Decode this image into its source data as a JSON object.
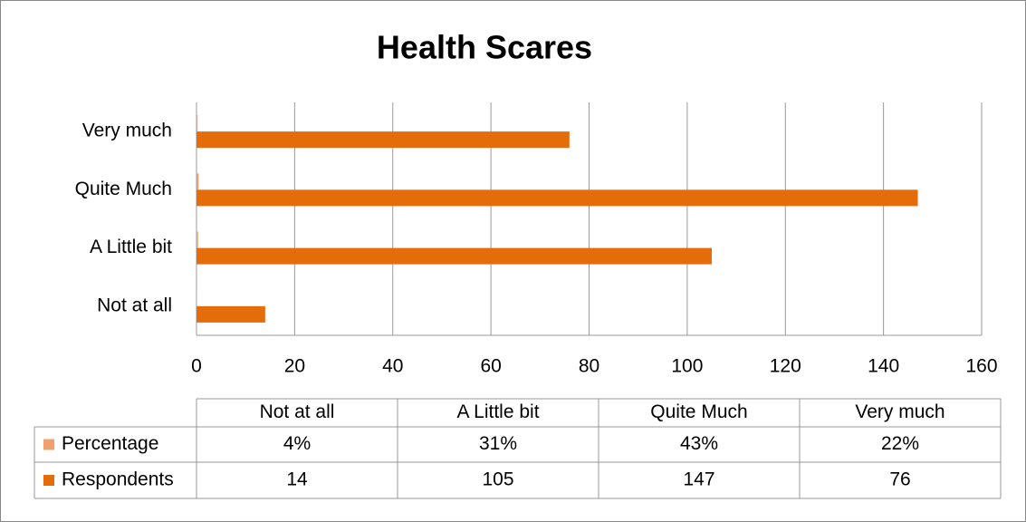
{
  "chart_data": {
    "type": "bar",
    "orientation": "horizontal",
    "title": "Health Scares",
    "categories": [
      "Not at all",
      "A Little bit",
      "Quite Much",
      "Very much"
    ],
    "series": [
      {
        "name": "Percentage",
        "color": "#f0a070",
        "values": [
          0.04,
          0.31,
          0.43,
          0.22
        ],
        "value_labels": [
          "4%",
          "31%",
          "43%",
          "22%"
        ]
      },
      {
        "name": "Respondents",
        "color": "#e46c0a",
        "values": [
          14,
          105,
          147,
          76
        ]
      }
    ],
    "xlim": [
      0,
      160
    ],
    "xticks": [
      0,
      20,
      40,
      60,
      80,
      100,
      120,
      140,
      160
    ],
    "grid": true,
    "data_table": true
  }
}
